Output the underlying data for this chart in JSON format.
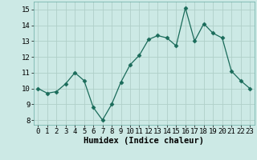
{
  "x": [
    0,
    1,
    2,
    3,
    4,
    5,
    6,
    7,
    8,
    9,
    10,
    11,
    12,
    13,
    14,
    15,
    16,
    17,
    18,
    19,
    20,
    21,
    22,
    23
  ],
  "y": [
    10.0,
    9.7,
    9.8,
    10.3,
    11.0,
    10.5,
    8.8,
    8.0,
    9.0,
    10.4,
    11.5,
    12.1,
    13.1,
    13.35,
    13.2,
    12.7,
    15.1,
    13.0,
    14.1,
    13.5,
    13.2,
    11.1,
    10.5,
    10.0
  ],
  "line_color": "#1a6b5a",
  "marker": "D",
  "marker_size": 2.5,
  "bg_color": "#cce9e5",
  "grid_color": "#b0cfc9",
  "xlabel": "Humidex (Indice chaleur)",
  "xlabel_fontsize": 7.5,
  "tick_fontsize": 6.5,
  "ylim": [
    7.7,
    15.5
  ],
  "xlim": [
    -0.5,
    23.5
  ],
  "yticks": [
    8,
    9,
    10,
    11,
    12,
    13,
    14,
    15
  ],
  "xticks": [
    0,
    1,
    2,
    3,
    4,
    5,
    6,
    7,
    8,
    9,
    10,
    11,
    12,
    13,
    14,
    15,
    16,
    17,
    18,
    19,
    20,
    21,
    22,
    23
  ]
}
